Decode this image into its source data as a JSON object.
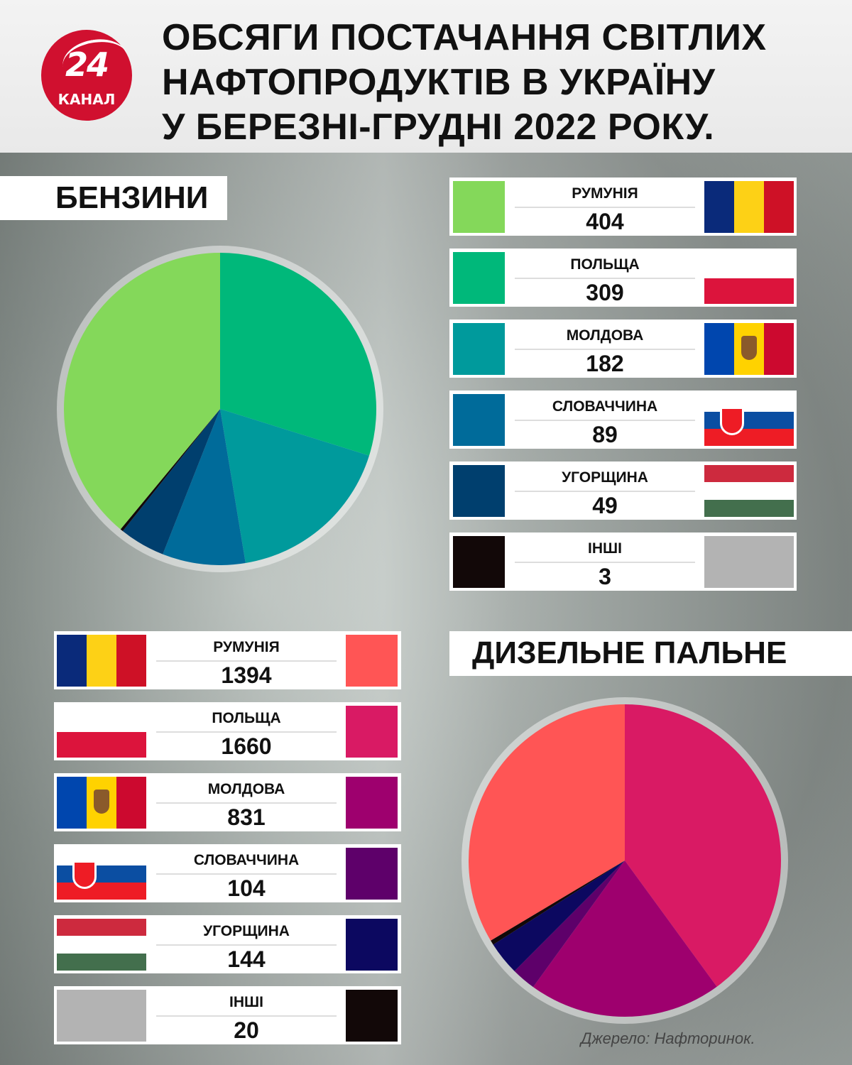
{
  "logo": {
    "number": "24",
    "text": "КАНАЛ",
    "color": "#d0102f"
  },
  "title": [
    "ОБСЯГИ ПОСТАЧАННЯ СВІТЛИХ",
    "НАФТОПРОДУКТІВ В УКРАЇНУ",
    "У БЕРЕЗНІ-ГРУДНІ 2022 РОКУ."
  ],
  "source": "Джерело: Нафторинок.",
  "chart_data": [
    {
      "type": "pie",
      "title": "БЕНЗИНИ",
      "start": "top",
      "direction": "clockwise",
      "categories": [
        "ПОЛЬЩА",
        "МОЛДОВА",
        "СЛОВАЧЧИНА",
        "УГОРЩИНА",
        "ІНШІ",
        "РУМУНІЯ"
      ],
      "values": [
        309,
        182,
        89,
        49,
        3,
        404
      ],
      "colors": [
        "#00b87a",
        "#009a9c",
        "#006b9a",
        "#003f6e",
        "#120808",
        "#84d85a"
      ],
      "legend": [
        {
          "label": "РУМУНІЯ",
          "value": "404",
          "color": "#84d85a",
          "flag": "romania"
        },
        {
          "label": "ПОЛЬЩА",
          "value": "309",
          "color": "#00b87a",
          "flag": "poland"
        },
        {
          "label": "МОЛДОВА",
          "value": "182",
          "color": "#009a9c",
          "flag": "moldova"
        },
        {
          "label": "СЛОВАЧЧИНА",
          "value": "89",
          "color": "#006b9a",
          "flag": "slovakia"
        },
        {
          "label": "УГОРЩИНА",
          "value": "49",
          "color": "#003f6e",
          "flag": "hungary"
        },
        {
          "label": "ІНШІ",
          "value": "3",
          "color": "#120808",
          "flag": "other"
        }
      ]
    },
    {
      "type": "pie",
      "title": "ДИЗЕЛЬНЕ ПАЛЬНЕ",
      "start": "top",
      "direction": "clockwise",
      "categories": [
        "ПОЛЬЩА",
        "МОЛДОВА",
        "СЛОВАЧЧИНА",
        "УГОРЩИНА",
        "ІНШІ",
        "РУМУНІЯ"
      ],
      "values": [
        1660,
        831,
        104,
        144,
        20,
        1394
      ],
      "colors": [
        "#d91a64",
        "#9e006e",
        "#5e006a",
        "#0c0860",
        "#120808",
        "#ff5555"
      ],
      "legend": [
        {
          "label": "РУМУНІЯ",
          "value": "1394",
          "color": "#ff5555",
          "flag": "romania"
        },
        {
          "label": "ПОЛЬЩА",
          "value": "1660",
          "color": "#d91a64",
          "flag": "poland"
        },
        {
          "label": "МОЛДОВА",
          "value": "831",
          "color": "#9e006e",
          "flag": "moldova"
        },
        {
          "label": "СЛОВАЧЧИНА",
          "value": "104",
          "color": "#5e006a",
          "flag": "slovakia"
        },
        {
          "label": "УГОРЩИНА",
          "value": "144",
          "color": "#0c0860",
          "flag": "hungary"
        },
        {
          "label": "ІНШІ",
          "value": "20",
          "color": "#120808",
          "flag": "other"
        }
      ]
    }
  ]
}
